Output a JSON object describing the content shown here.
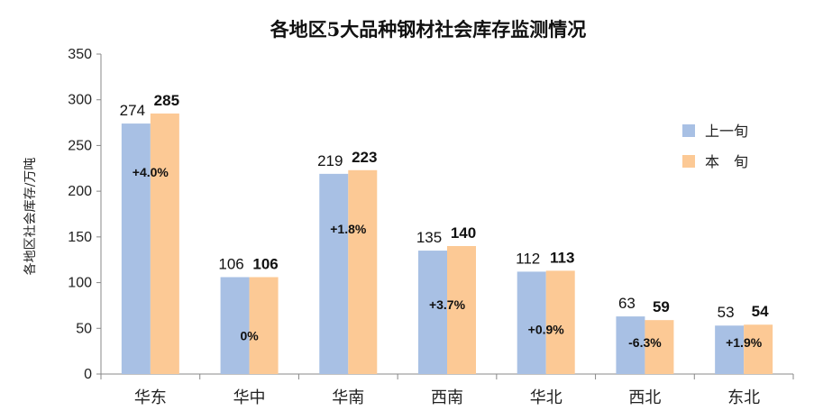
{
  "chart_data": {
    "type": "bar",
    "title": "各地区5大品种钢材社会库存监测情况",
    "ylabel": "各地区社会库存/万吨",
    "xlabel": "",
    "ylim": [
      0,
      350
    ],
    "yticks": [
      0,
      50,
      100,
      150,
      200,
      250,
      300,
      350
    ],
    "grid": false,
    "legend_position": "right",
    "categories": [
      "华东",
      "华中",
      "华南",
      "西南",
      "华北",
      "西北",
      "东北"
    ],
    "series": [
      {
        "name": "上一旬",
        "color": "#a8c0e4",
        "values": [
          274,
          106,
          219,
          135,
          112,
          63,
          53
        ]
      },
      {
        "name": "本　旬",
        "color": "#fcc995",
        "values": [
          285,
          106,
          223,
          140,
          113,
          59,
          54
        ]
      }
    ],
    "change_labels": [
      "+4.0%",
      "0%",
      "+1.8%",
      "+3.7%",
      "+0.9%",
      "-6.3%",
      "+1.9%"
    ],
    "change_values": [
      4.0,
      0,
      1.8,
      3.7,
      0.9,
      -6.3,
      1.9
    ]
  }
}
